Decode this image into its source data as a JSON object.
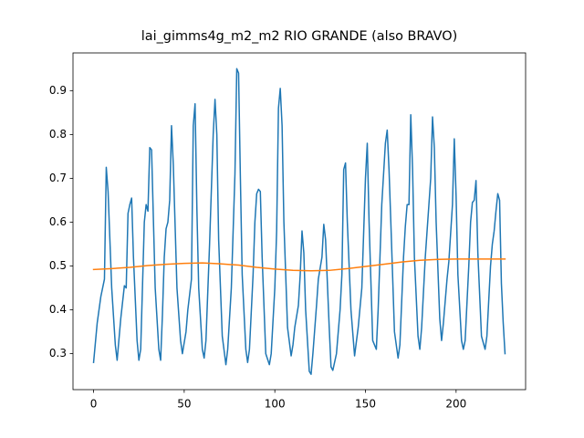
{
  "chart_data": {
    "type": "line",
    "title": "lai_gimms4g_m2_m2 RIO GRANDE (also BRAVO)",
    "xlim": [
      -11.35,
      238.35
    ],
    "xticks": [
      0,
      50,
      100,
      150,
      200
    ],
    "ylim": [
      0.218,
      0.986
    ],
    "yticks": [
      0.3,
      0.4,
      0.5,
      0.6,
      0.7,
      0.8,
      0.9
    ],
    "series": [
      {
        "color": "#1f77b4",
        "x": [
          0,
          2,
          4,
          6,
          7,
          8,
          10,
          12,
          13,
          15,
          17,
          18,
          19,
          20,
          21,
          22,
          24,
          25,
          26,
          28,
          29,
          30,
          31,
          32,
          34,
          36,
          37,
          38,
          39,
          40,
          41,
          42,
          43,
          44,
          46,
          48,
          49,
          51,
          52,
          54,
          55,
          56,
          57,
          58,
          60,
          61,
          62,
          64,
          66,
          67,
          68,
          69,
          71,
          73,
          74,
          76,
          78,
          79,
          80,
          81,
          82,
          84,
          85,
          86,
          88,
          89,
          90,
          91,
          92,
          93,
          95,
          97,
          98,
          100,
          101,
          102,
          103,
          104,
          105,
          107,
          109,
          110,
          111,
          113,
          114,
          115,
          116,
          117,
          119,
          120,
          121,
          123,
          124,
          126,
          127,
          128,
          130,
          131,
          132,
          134,
          136,
          137,
          138,
          139,
          140,
          142,
          144,
          146,
          148,
          150,
          151,
          152,
          154,
          156,
          157,
          159,
          161,
          162,
          163,
          164,
          166,
          168,
          169,
          171,
          172,
          173,
          174,
          175,
          176,
          177,
          179,
          180,
          181,
          183,
          185,
          186,
          187,
          188,
          189,
          191,
          192,
          193,
          195,
          196,
          198,
          199,
          200,
          201,
          203,
          204,
          205,
          207,
          208,
          209,
          210,
          211,
          212,
          214,
          216,
          217,
          219,
          220,
          221,
          222,
          223,
          224,
          225,
          226,
          227
        ],
        "values": [
          0.28,
          0.37,
          0.43,
          0.47,
          0.725,
          0.67,
          0.45,
          0.32,
          0.285,
          0.38,
          0.455,
          0.45,
          0.62,
          0.64,
          0.655,
          0.52,
          0.33,
          0.285,
          0.31,
          0.6,
          0.64,
          0.625,
          0.77,
          0.765,
          0.45,
          0.31,
          0.285,
          0.39,
          0.52,
          0.585,
          0.6,
          0.65,
          0.82,
          0.73,
          0.45,
          0.33,
          0.3,
          0.35,
          0.4,
          0.47,
          0.82,
          0.87,
          0.63,
          0.45,
          0.31,
          0.29,
          0.33,
          0.55,
          0.8,
          0.88,
          0.8,
          0.56,
          0.34,
          0.275,
          0.31,
          0.45,
          0.71,
          0.95,
          0.94,
          0.7,
          0.48,
          0.31,
          0.28,
          0.31,
          0.48,
          0.6,
          0.665,
          0.675,
          0.67,
          0.52,
          0.3,
          0.275,
          0.3,
          0.45,
          0.58,
          0.86,
          0.905,
          0.82,
          0.6,
          0.36,
          0.295,
          0.32,
          0.36,
          0.41,
          0.48,
          0.58,
          0.53,
          0.4,
          0.26,
          0.253,
          0.3,
          0.41,
          0.47,
          0.52,
          0.595,
          0.56,
          0.36,
          0.27,
          0.262,
          0.3,
          0.4,
          0.48,
          0.72,
          0.735,
          0.6,
          0.4,
          0.295,
          0.36,
          0.45,
          0.7,
          0.78,
          0.6,
          0.33,
          0.31,
          0.4,
          0.64,
          0.78,
          0.81,
          0.72,
          0.6,
          0.35,
          0.29,
          0.32,
          0.52,
          0.59,
          0.64,
          0.64,
          0.845,
          0.72,
          0.52,
          0.34,
          0.31,
          0.36,
          0.52,
          0.64,
          0.7,
          0.84,
          0.77,
          0.6,
          0.38,
          0.33,
          0.37,
          0.47,
          0.51,
          0.64,
          0.79,
          0.66,
          0.48,
          0.33,
          0.31,
          0.33,
          0.5,
          0.6,
          0.645,
          0.65,
          0.695,
          0.53,
          0.34,
          0.31,
          0.34,
          0.5,
          0.55,
          0.58,
          0.625,
          0.665,
          0.65,
          0.46,
          0.37,
          0.3
        ]
      },
      {
        "color": "#ff7f0e",
        "x": [
          0,
          10,
          20,
          30,
          40,
          50,
          60,
          70,
          80,
          90,
          100,
          110,
          120,
          130,
          140,
          150,
          160,
          170,
          180,
          190,
          200,
          210,
          220,
          227
        ],
        "values": [
          0.492,
          0.494,
          0.497,
          0.501,
          0.504,
          0.506,
          0.507,
          0.505,
          0.502,
          0.497,
          0.493,
          0.49,
          0.489,
          0.49,
          0.494,
          0.499,
          0.504,
          0.509,
          0.513,
          0.515,
          0.516,
          0.516,
          0.516,
          0.516
        ]
      }
    ]
  }
}
